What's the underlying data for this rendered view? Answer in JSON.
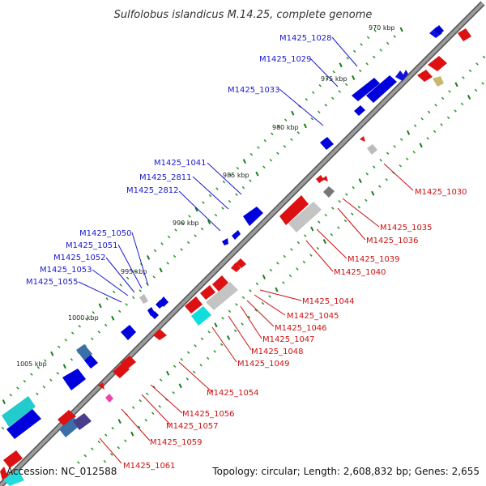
{
  "title": "Sulfolobus islandicus M.14.25, complete genome",
  "accession": "Accession: NC_012588",
  "summary": "Topology: circular; Length: 2,608,832 bp; Genes: 2,655",
  "colors": {
    "backbone": "#808080",
    "forward_gene": "#0000e6",
    "reverse_gene": "#e60000",
    "label_forward": "#1a1acc",
    "label_reverse": "#cc1111",
    "tick": "#1a7a1a"
  },
  "kbp_ticks": [
    "970 kbp",
    "975 kbp",
    "980 kbp",
    "985 kbp",
    "990 kbp",
    "995 kbp",
    "1000 kbp",
    "1005 kbp"
  ],
  "upper_labels": [
    "M1425_1028",
    "M1425_1029",
    "M1425_1033",
    "M1425_1041",
    "M1425_2811",
    "M1425_2812",
    "M1425_1050",
    "M1425_1051",
    "M1425_1052",
    "M1425_1053",
    "M1425_1055"
  ],
  "lower_labels": [
    "M1425_1030",
    "M1425_1035",
    "M1425_1036",
    "M1425_1039",
    "M1425_1040",
    "M1425_1044",
    "M1425_1045",
    "M1425_1046",
    "M1425_1047",
    "M1425_1048",
    "M1425_1049",
    "M1425_1054",
    "M1425_1056",
    "M1425_1057",
    "M1425_1059",
    "M1425_1061"
  ]
}
